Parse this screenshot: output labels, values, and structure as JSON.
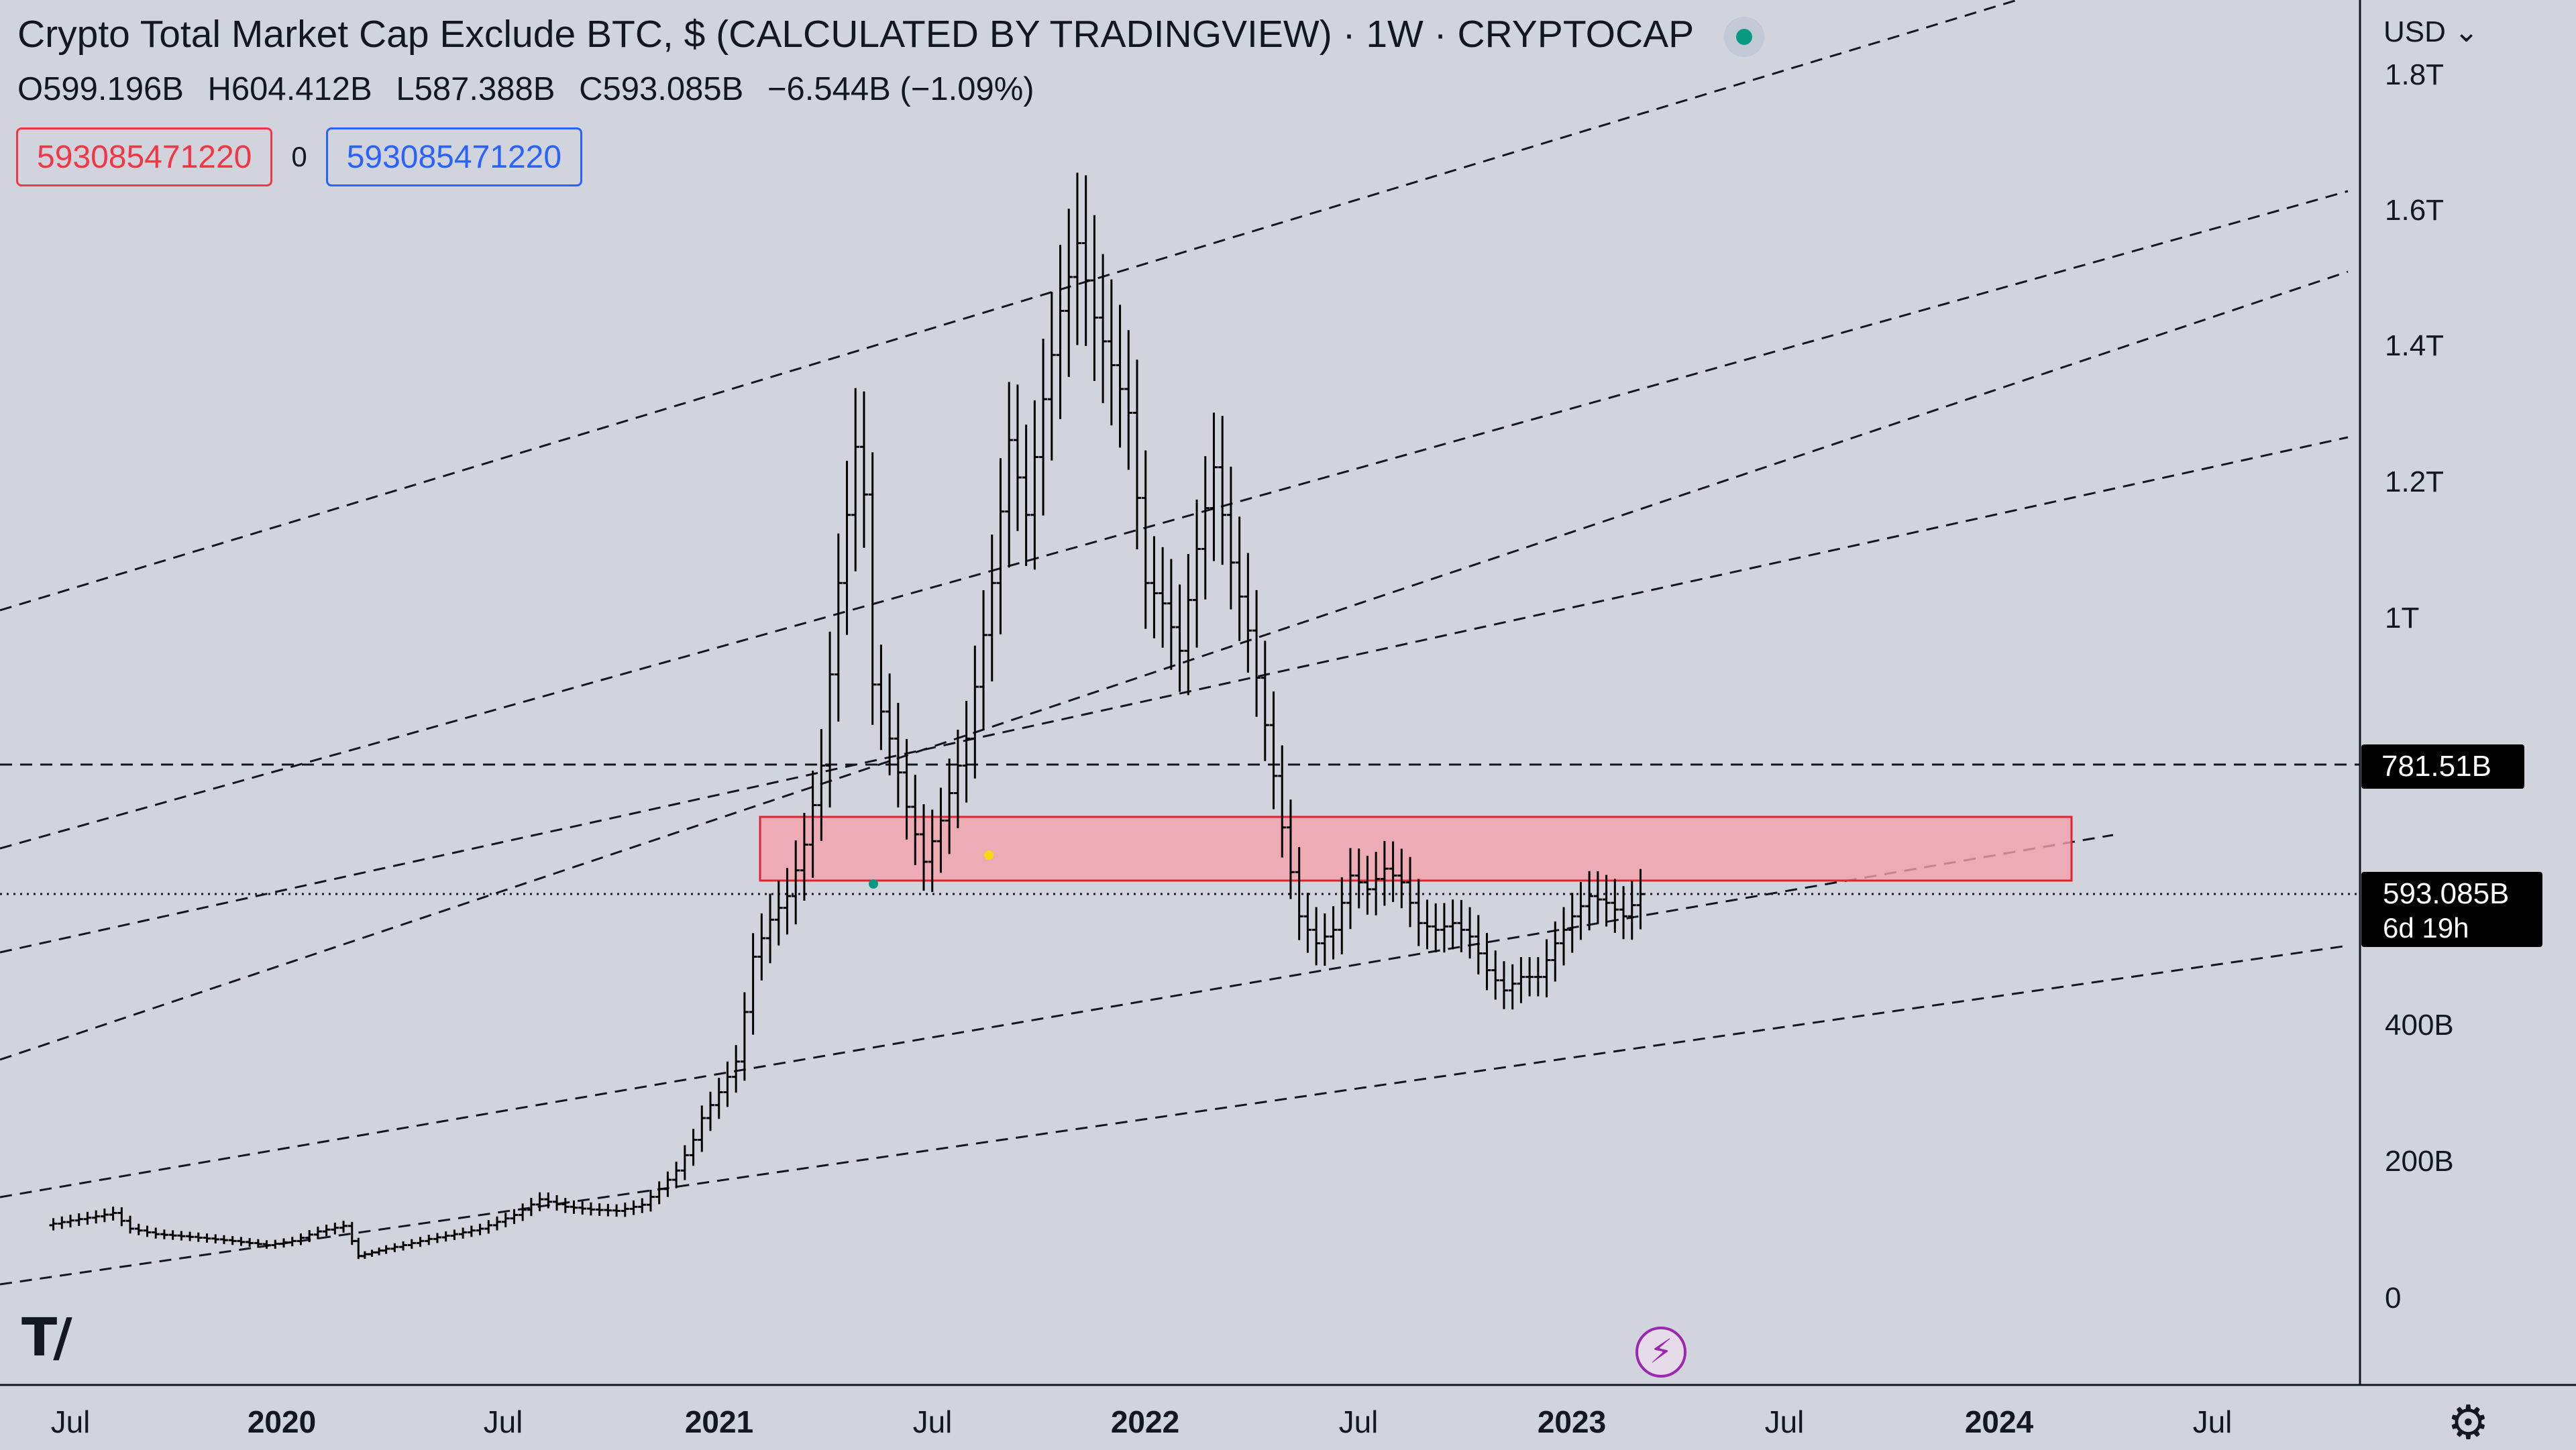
{
  "header": {
    "title": "Crypto Total Market Cap Exclude BTC, $ (CALCULATED BY TRADINGVIEW) · 1W · CRYPTOCAP",
    "live_icon": "live-status-dot"
  },
  "ohlc": {
    "open": "O599.196B",
    "high": "H604.412B",
    "low": "L587.388B",
    "close": "C593.085B",
    "change": "−6.544B (−1.09%)"
  },
  "inputs": {
    "value1": "593085471220",
    "separator": "0",
    "value2": "593085471220"
  },
  "currency_selector": "USD",
  "colors": {
    "background": "#d1d4dc",
    "candle": "#000000",
    "zone_fill": "#f2a0ab",
    "zone_stroke": "#e0252e",
    "price_label_bg": "#000000"
  },
  "chart_data": {
    "type": "ohlc-bar",
    "interval": "1W",
    "y_scale": "log",
    "y_ticks": [
      "1.8T",
      "1.6T",
      "1.4T",
      "1.2T",
      "1T",
      "400B",
      "200B",
      "0"
    ],
    "x_ticks": [
      "Jul",
      "2020",
      "Jul",
      "2021",
      "Jul",
      "2022",
      "Jul",
      "2023",
      "Jul",
      "2024",
      "Jul"
    ],
    "price_labels": [
      {
        "text": "781.51B"
      },
      {
        "text": "593.085B",
        "sub": "6d 19h"
      }
    ],
    "zone": {
      "from": "2021-03",
      "to": "2024-03",
      "low_billion": 595,
      "high_billion": 715,
      "label": ""
    },
    "horizontal_lines_billion": [
      781.51,
      593.085
    ],
    "series_close_billion": [
      [
        2019.46,
        105
      ],
      [
        2019.52,
        112
      ],
      [
        2019.58,
        118
      ],
      [
        2019.62,
        123
      ],
      [
        2019.66,
        100
      ],
      [
        2019.72,
        92
      ],
      [
        2019.8,
        88
      ],
      [
        2019.9,
        82
      ],
      [
        2019.98,
        76
      ],
      [
        2020.04,
        82
      ],
      [
        2020.1,
        96
      ],
      [
        2020.16,
        104
      ],
      [
        2020.19,
        60
      ],
      [
        2020.24,
        68
      ],
      [
        2020.3,
        76
      ],
      [
        2020.36,
        85
      ],
      [
        2020.42,
        92
      ],
      [
        2020.48,
        100
      ],
      [
        2020.56,
        120
      ],
      [
        2020.62,
        143
      ],
      [
        2020.68,
        132
      ],
      [
        2020.74,
        128
      ],
      [
        2020.8,
        126
      ],
      [
        2020.86,
        135
      ],
      [
        2020.9,
        158
      ],
      [
        2020.94,
        185
      ],
      [
        2020.98,
        230
      ],
      [
        2021.0,
        262
      ],
      [
        2021.04,
        300
      ],
      [
        2021.08,
        345
      ],
      [
        2021.1,
        418
      ],
      [
        2021.12,
        500
      ],
      [
        2021.16,
        555
      ],
      [
        2021.2,
        590
      ],
      [
        2021.24,
        665
      ],
      [
        2021.28,
        780
      ],
      [
        2021.32,
        1050
      ],
      [
        2021.36,
        1250
      ],
      [
        2021.38,
        1180
      ],
      [
        2021.4,
        900
      ],
      [
        2021.44,
        820
      ],
      [
        2021.48,
        720
      ],
      [
        2021.52,
        640
      ],
      [
        2021.56,
        700
      ],
      [
        2021.62,
        820
      ],
      [
        2021.68,
        1050
      ],
      [
        2021.72,
        1260
      ],
      [
        2021.76,
        1150
      ],
      [
        2021.8,
        1320
      ],
      [
        2021.84,
        1450
      ],
      [
        2021.88,
        1550
      ],
      [
        2021.92,
        1440
      ],
      [
        2021.96,
        1370
      ],
      [
        2022.0,
        1300
      ],
      [
        2022.04,
        1050
      ],
      [
        2022.08,
        1020
      ],
      [
        2022.12,
        950
      ],
      [
        2022.16,
        1100
      ],
      [
        2022.2,
        1220
      ],
      [
        2022.24,
        1080
      ],
      [
        2022.28,
        980
      ],
      [
        2022.32,
        840
      ],
      [
        2022.36,
        690
      ],
      [
        2022.4,
        560
      ],
      [
        2022.44,
        520
      ],
      [
        2022.48,
        540
      ],
      [
        2022.52,
        620
      ],
      [
        2022.56,
        600
      ],
      [
        2022.6,
        630
      ],
      [
        2022.64,
        610
      ],
      [
        2022.68,
        550
      ],
      [
        2022.72,
        540
      ],
      [
        2022.76,
        550
      ],
      [
        2022.8,
        530
      ],
      [
        2022.84,
        480
      ],
      [
        2022.88,
        450
      ],
      [
        2022.92,
        470
      ],
      [
        2022.96,
        470
      ],
      [
        2023.0,
        520
      ],
      [
        2023.04,
        560
      ],
      [
        2023.08,
        590
      ],
      [
        2023.12,
        580
      ],
      [
        2023.16,
        560
      ],
      [
        2023.2,
        593
      ]
    ]
  }
}
